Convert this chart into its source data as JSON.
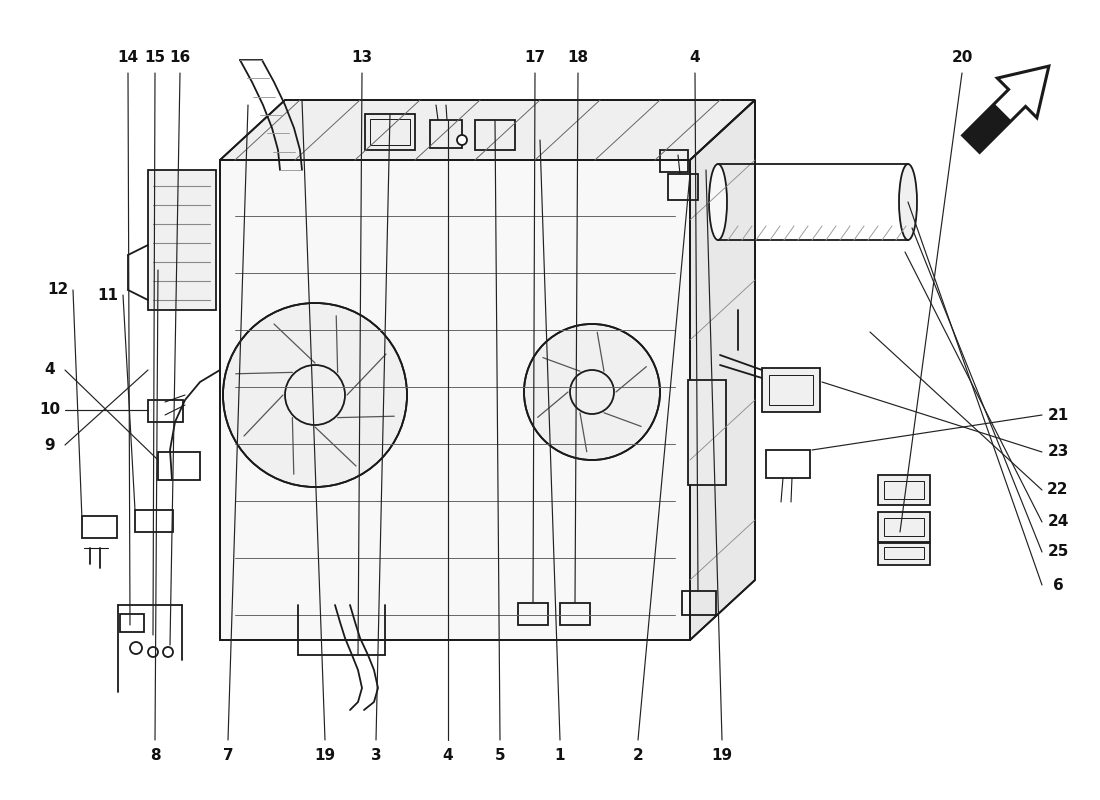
{
  "bg_color": "#ffffff",
  "line_color": "#1a1a1a",
  "labels_top": [
    [
      "8",
      155,
      45
    ],
    [
      "7",
      228,
      45
    ],
    [
      "19",
      325,
      45
    ],
    [
      "3",
      376,
      45
    ],
    [
      "4",
      448,
      45
    ],
    [
      "5",
      500,
      45
    ],
    [
      "1",
      560,
      45
    ],
    [
      "2",
      638,
      45
    ],
    [
      "19",
      722,
      45
    ]
  ],
  "labels_right": [
    [
      "6",
      1058,
      215
    ],
    [
      "25",
      1058,
      248
    ],
    [
      "24",
      1058,
      278
    ],
    [
      "22",
      1058,
      310
    ],
    [
      "23",
      1058,
      348
    ],
    [
      "21",
      1058,
      385
    ]
  ],
  "labels_left": [
    [
      "9",
      50,
      355
    ],
    [
      "10",
      50,
      390
    ],
    [
      "4",
      50,
      430
    ],
    [
      "11",
      108,
      505
    ],
    [
      "12",
      58,
      510
    ]
  ],
  "labels_bottom": [
    [
      "14",
      128,
      742
    ],
    [
      "15",
      155,
      742
    ],
    [
      "16",
      180,
      742
    ],
    [
      "13",
      362,
      742
    ],
    [
      "17",
      535,
      742
    ],
    [
      "18",
      578,
      742
    ],
    [
      "4",
      695,
      742
    ],
    [
      "20",
      962,
      742
    ]
  ]
}
